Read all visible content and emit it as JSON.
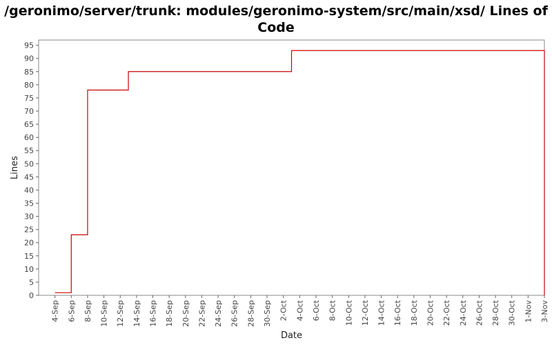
{
  "chart_data": {
    "type": "line",
    "title": "/geronimo/server/trunk: modules/geronimo-system/src/main/xsd/ Lines of Code",
    "xlabel": "Date",
    "ylabel": "Lines",
    "ylim": [
      0,
      97
    ],
    "yticks": [
      0,
      5,
      10,
      15,
      20,
      25,
      30,
      35,
      40,
      45,
      50,
      55,
      60,
      65,
      70,
      75,
      80,
      85,
      90,
      95
    ],
    "xlim": [
      "2005-09-02",
      "2005-11-03"
    ],
    "xtick_labels": [
      "4-Sep",
      "6-Sep",
      "8-Sep",
      "10-Sep",
      "12-Sep",
      "14-Sep",
      "16-Sep",
      "18-Sep",
      "20-Sep",
      "22-Sep",
      "24-Sep",
      "26-Sep",
      "28-Sep",
      "30-Sep",
      "2-Oct",
      "4-Oct",
      "6-Oct",
      "8-Oct",
      "10-Oct",
      "12-Oct",
      "14-Oct",
      "16-Oct",
      "18-Oct",
      "20-Oct",
      "22-Oct",
      "24-Oct",
      "26-Oct",
      "28-Oct",
      "30-Oct",
      "1-Nov",
      "3-Nov"
    ],
    "step": "post",
    "grid": false,
    "series": [
      {
        "color": "#cc0000",
        "x": [
          "2005-09-04",
          "2005-09-06",
          "2005-09-08",
          "2005-09-13",
          "2005-10-03",
          "2005-11-03"
        ],
        "y": [
          1,
          23,
          78,
          85,
          93,
          0
        ]
      }
    ]
  }
}
